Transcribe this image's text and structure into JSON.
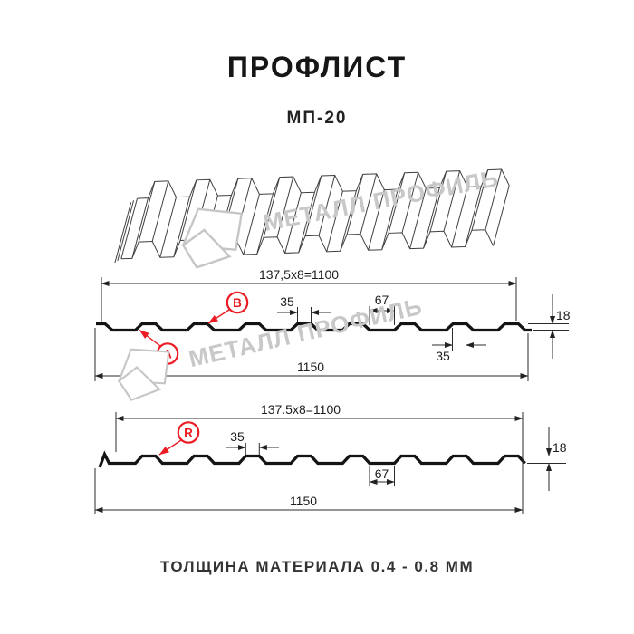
{
  "title": "ПРОФЛИСТ",
  "model": "МП-20",
  "watermark": {
    "text": "МЕТАЛЛ ПРОФИЛЬ"
  },
  "colors": {
    "accent_red": "#ec1c24",
    "dimension_line": "#2b2b2b",
    "profile_line": "#141414",
    "watermark_gray": "#c8c8c8"
  },
  "section_top": {
    "pitch_formula": "137,5x8=1100",
    "crest_width": "35",
    "valley_width": "67",
    "profile_height": "18",
    "crest_width_bottom": "35",
    "full_width": "1150",
    "label_a": "A",
    "label_b": "B"
  },
  "section_bottom": {
    "pitch_formula": "137.5x8=1100",
    "crest_width": "35",
    "valley_width": "67",
    "profile_height": "18",
    "full_width": "1150",
    "label_r": "R"
  },
  "footer_note": "ТОЛЩИНА МАТЕРИАЛА 0.4 - 0.8 ММ"
}
